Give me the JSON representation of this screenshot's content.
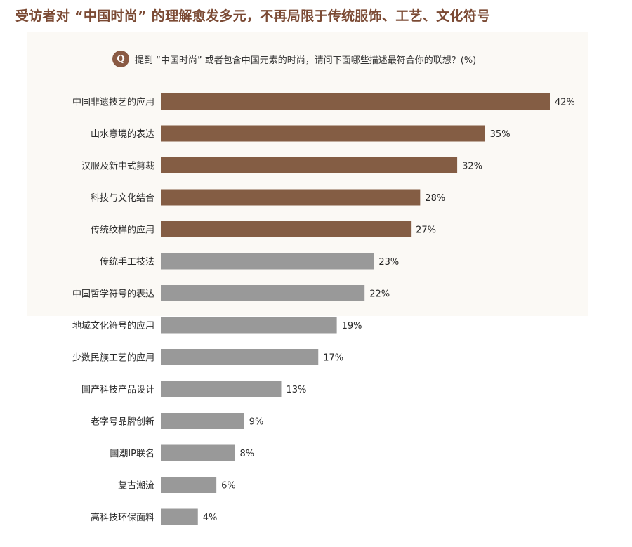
{
  "title": "受访者对 “中国时尚” 的理解愈发多元，不再局限于传统服饰、工艺、文化符号",
  "question": {
    "badge": "Q",
    "text": "提到 “中国时尚” 或者包含中国元素的时尚，请问下面哪些描述最符合你的联想？(%)"
  },
  "colors": {
    "highlight": "#845d44",
    "regular": "#999999",
    "title": "#7b4a34"
  },
  "chart_data": {
    "type": "bar",
    "orientation": "horizontal",
    "unit": "%",
    "xlim": [
      0,
      42
    ],
    "categories": [
      "中国非遗技艺的应用",
      "山水意境的表达",
      "汉服及新中式剪裁",
      "科技与文化结合",
      "传统纹样的应用",
      "传统手工技法",
      "中国哲学符号的表达",
      "地域文化符号的应用",
      "少数民族工艺的应用",
      "国产科技产品设计",
      "老字号品牌创新",
      "国潮IP联名",
      "复古潮流",
      "高科技环保面料"
    ],
    "values": [
      42,
      35,
      32,
      28,
      27,
      23,
      22,
      19,
      17,
      13,
      9,
      8,
      6,
      4
    ],
    "value_labels": [
      "42%",
      "35%",
      "32%",
      "28%",
      "27%",
      "23%",
      "22%",
      "19%",
      "17%",
      "13%",
      "9%",
      "8%",
      "6%",
      "4%"
    ],
    "highlighted_count": 5
  }
}
